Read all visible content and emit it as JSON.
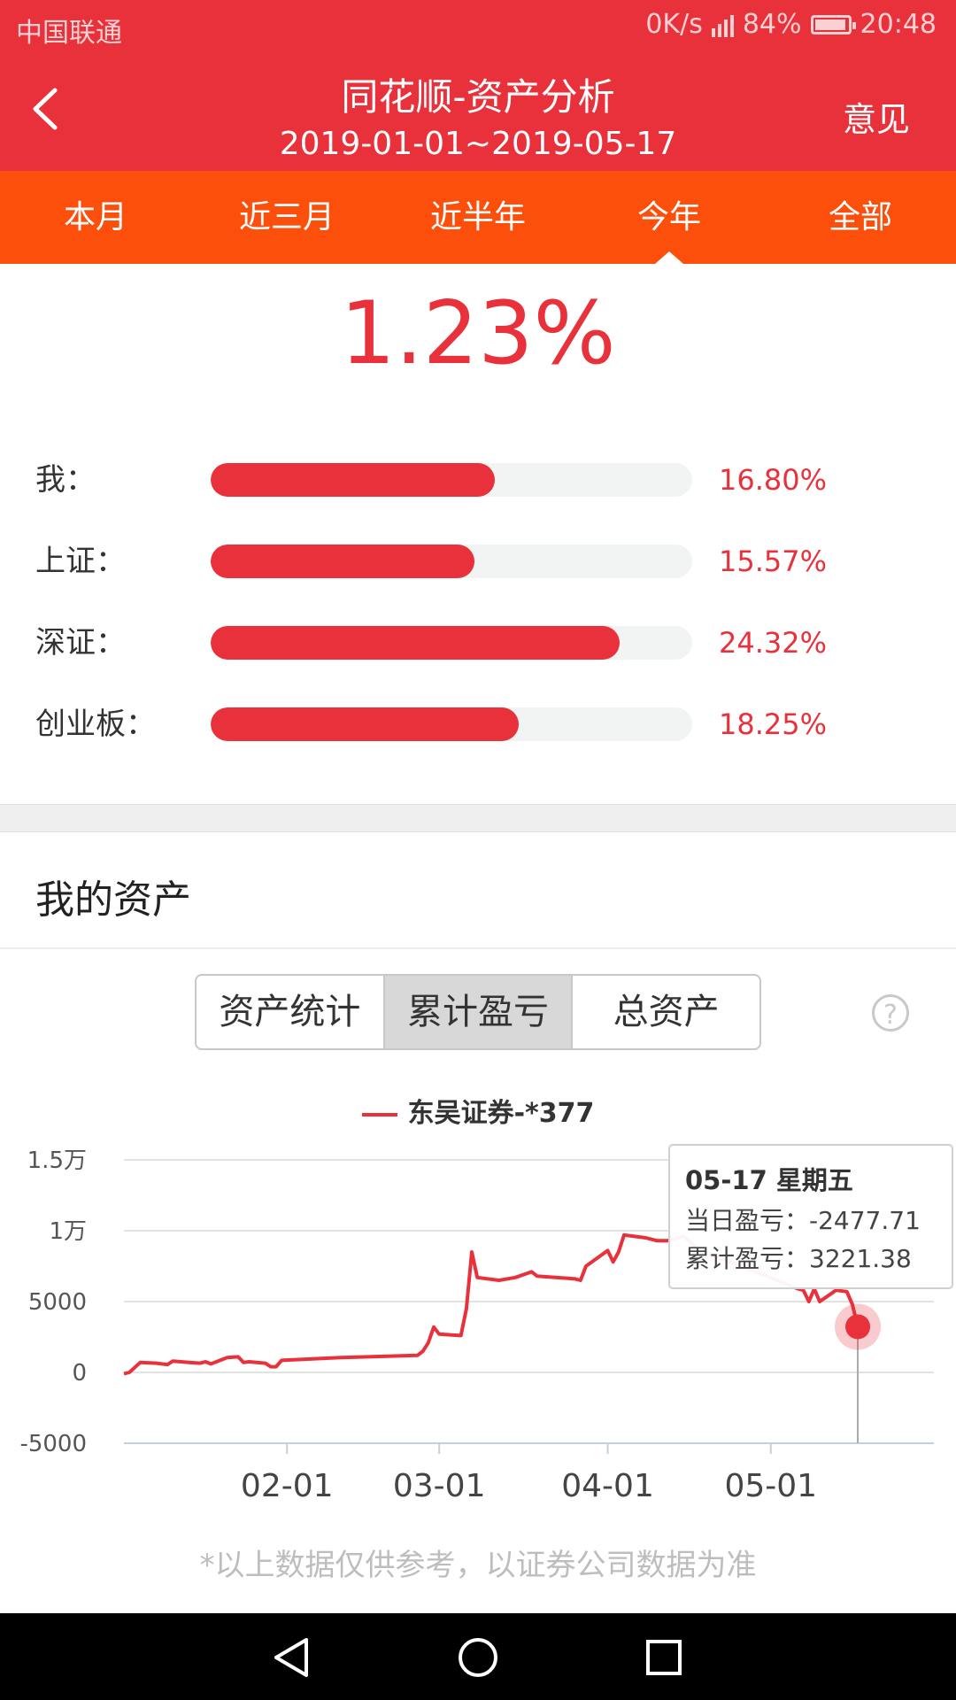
{
  "status": {
    "carrier": "中国联通",
    "speed": "0K/s",
    "battery": "84%",
    "time": "20:48"
  },
  "header": {
    "title": "同花顺-资产分析",
    "date_range": "2019-01-01~2019-05-17",
    "feedback": "意见"
  },
  "tabs": [
    {
      "label": "本月",
      "active": false
    },
    {
      "label": "近三月",
      "active": false
    },
    {
      "label": "近半年",
      "active": false
    },
    {
      "label": "今年",
      "active": true
    },
    {
      "label": "全部",
      "active": false
    }
  ],
  "summary": {
    "return_pct": "1.23%"
  },
  "comparison": [
    {
      "label": "我：",
      "value": "16.80%",
      "fill": 0.59
    },
    {
      "label": "上证：",
      "value": "15.57%",
      "fill": 0.547
    },
    {
      "label": "深证：",
      "value": "24.32%",
      "fill": 0.85
    },
    {
      "label": "创业板：",
      "value": "18.25%",
      "fill": 0.64
    }
  ],
  "assets": {
    "section_title": "我的资产",
    "segments": [
      {
        "label": "资产统计",
        "active": false
      },
      {
        "label": "累计盈亏",
        "active": true
      },
      {
        "label": "总资产",
        "active": false
      }
    ],
    "help_icon": "?"
  },
  "chart_data": {
    "type": "line",
    "series": [
      {
        "name": "东吴证券-*377",
        "color": "#e8313a",
        "points": [
          [
            "2019-01-02",
            -100
          ],
          [
            "2019-01-03",
            0
          ],
          [
            "2019-01-05",
            700
          ],
          [
            "2019-01-08",
            650
          ],
          [
            "2019-01-10",
            550
          ],
          [
            "2019-01-11",
            800
          ],
          [
            "2019-01-14",
            700
          ],
          [
            "2019-01-16",
            650
          ],
          [
            "2019-01-17",
            750
          ],
          [
            "2019-01-18",
            600
          ],
          [
            "2019-01-21",
            1050
          ],
          [
            "2019-01-23",
            1100
          ],
          [
            "2019-01-24",
            700
          ],
          [
            "2019-01-25",
            750
          ],
          [
            "2019-01-28",
            650
          ],
          [
            "2019-01-29",
            400
          ],
          [
            "2019-01-30",
            400
          ],
          [
            "2019-01-31",
            850
          ],
          [
            "2019-02-11",
            1050
          ],
          [
            "2019-02-25",
            1200
          ],
          [
            "2019-02-26",
            1500
          ],
          [
            "2019-02-27",
            2100
          ],
          [
            "2019-02-28",
            3200
          ],
          [
            "2019-03-01",
            2700
          ],
          [
            "2019-03-05",
            2600
          ],
          [
            "2019-03-06",
            4500
          ],
          [
            "2019-03-07",
            8500
          ],
          [
            "2019-03-08",
            6700
          ],
          [
            "2019-03-12",
            6500
          ],
          [
            "2019-03-15",
            6700
          ],
          [
            "2019-03-18",
            7100
          ],
          [
            "2019-03-19",
            6800
          ],
          [
            "2019-03-26",
            6600
          ],
          [
            "2019-03-27",
            6500
          ],
          [
            "2019-03-28",
            7500
          ],
          [
            "2019-04-01",
            8600
          ],
          [
            "2019-04-02",
            7800
          ],
          [
            "2019-04-03",
            8500
          ],
          [
            "2019-04-04",
            9700
          ],
          [
            "2019-04-08",
            9500
          ],
          [
            "2019-04-10",
            9300
          ],
          [
            "2019-04-12",
            9300
          ],
          [
            "2019-04-15",
            9600
          ],
          [
            "2019-04-17",
            8900
          ],
          [
            "2019-04-19",
            8500
          ],
          [
            "2019-04-22",
            8000
          ],
          [
            "2019-04-25",
            7600
          ],
          [
            "2019-04-29",
            7000
          ],
          [
            "2019-05-06",
            5900
          ],
          [
            "2019-05-07",
            5800
          ],
          [
            "2019-05-08",
            5000
          ],
          [
            "2019-05-09",
            5900
          ],
          [
            "2019-05-10",
            5000
          ],
          [
            "2019-05-13",
            5800
          ],
          [
            "2019-05-15",
            5700
          ],
          [
            "2019-05-16",
            4800
          ],
          [
            "2019-05-17",
            3221.38
          ]
        ]
      }
    ],
    "x_range": [
      "2019-01-02",
      "2019-05-31"
    ],
    "x_ticks": [
      {
        "date": "2019-02-01",
        "label": "02-01"
      },
      {
        "date": "2019-03-01",
        "label": "03-01"
      },
      {
        "date": "2019-04-01",
        "label": "04-01"
      },
      {
        "date": "2019-05-01",
        "label": "05-01"
      }
    ],
    "y_ticks": [
      {
        "value": 15000,
        "label": "1.5万"
      },
      {
        "value": 10000,
        "label": "1万"
      },
      {
        "value": 5000,
        "label": "5000"
      },
      {
        "value": 0,
        "label": "0"
      },
      {
        "value": -5000,
        "label": "-5000"
      }
    ],
    "ylim": [
      -5000,
      15000
    ],
    "grid": true,
    "legend": "top-center",
    "tooltip": {
      "date": "2019-05-17",
      "title": "05-17 星期五",
      "daily_label": "当日盈亏：",
      "daily_value": "-2477.71",
      "cumulative_label": "累计盈亏：",
      "cumulative_value": "3221.38"
    }
  },
  "footnote": "*以上数据仅供参考，以证券公司数据为准"
}
